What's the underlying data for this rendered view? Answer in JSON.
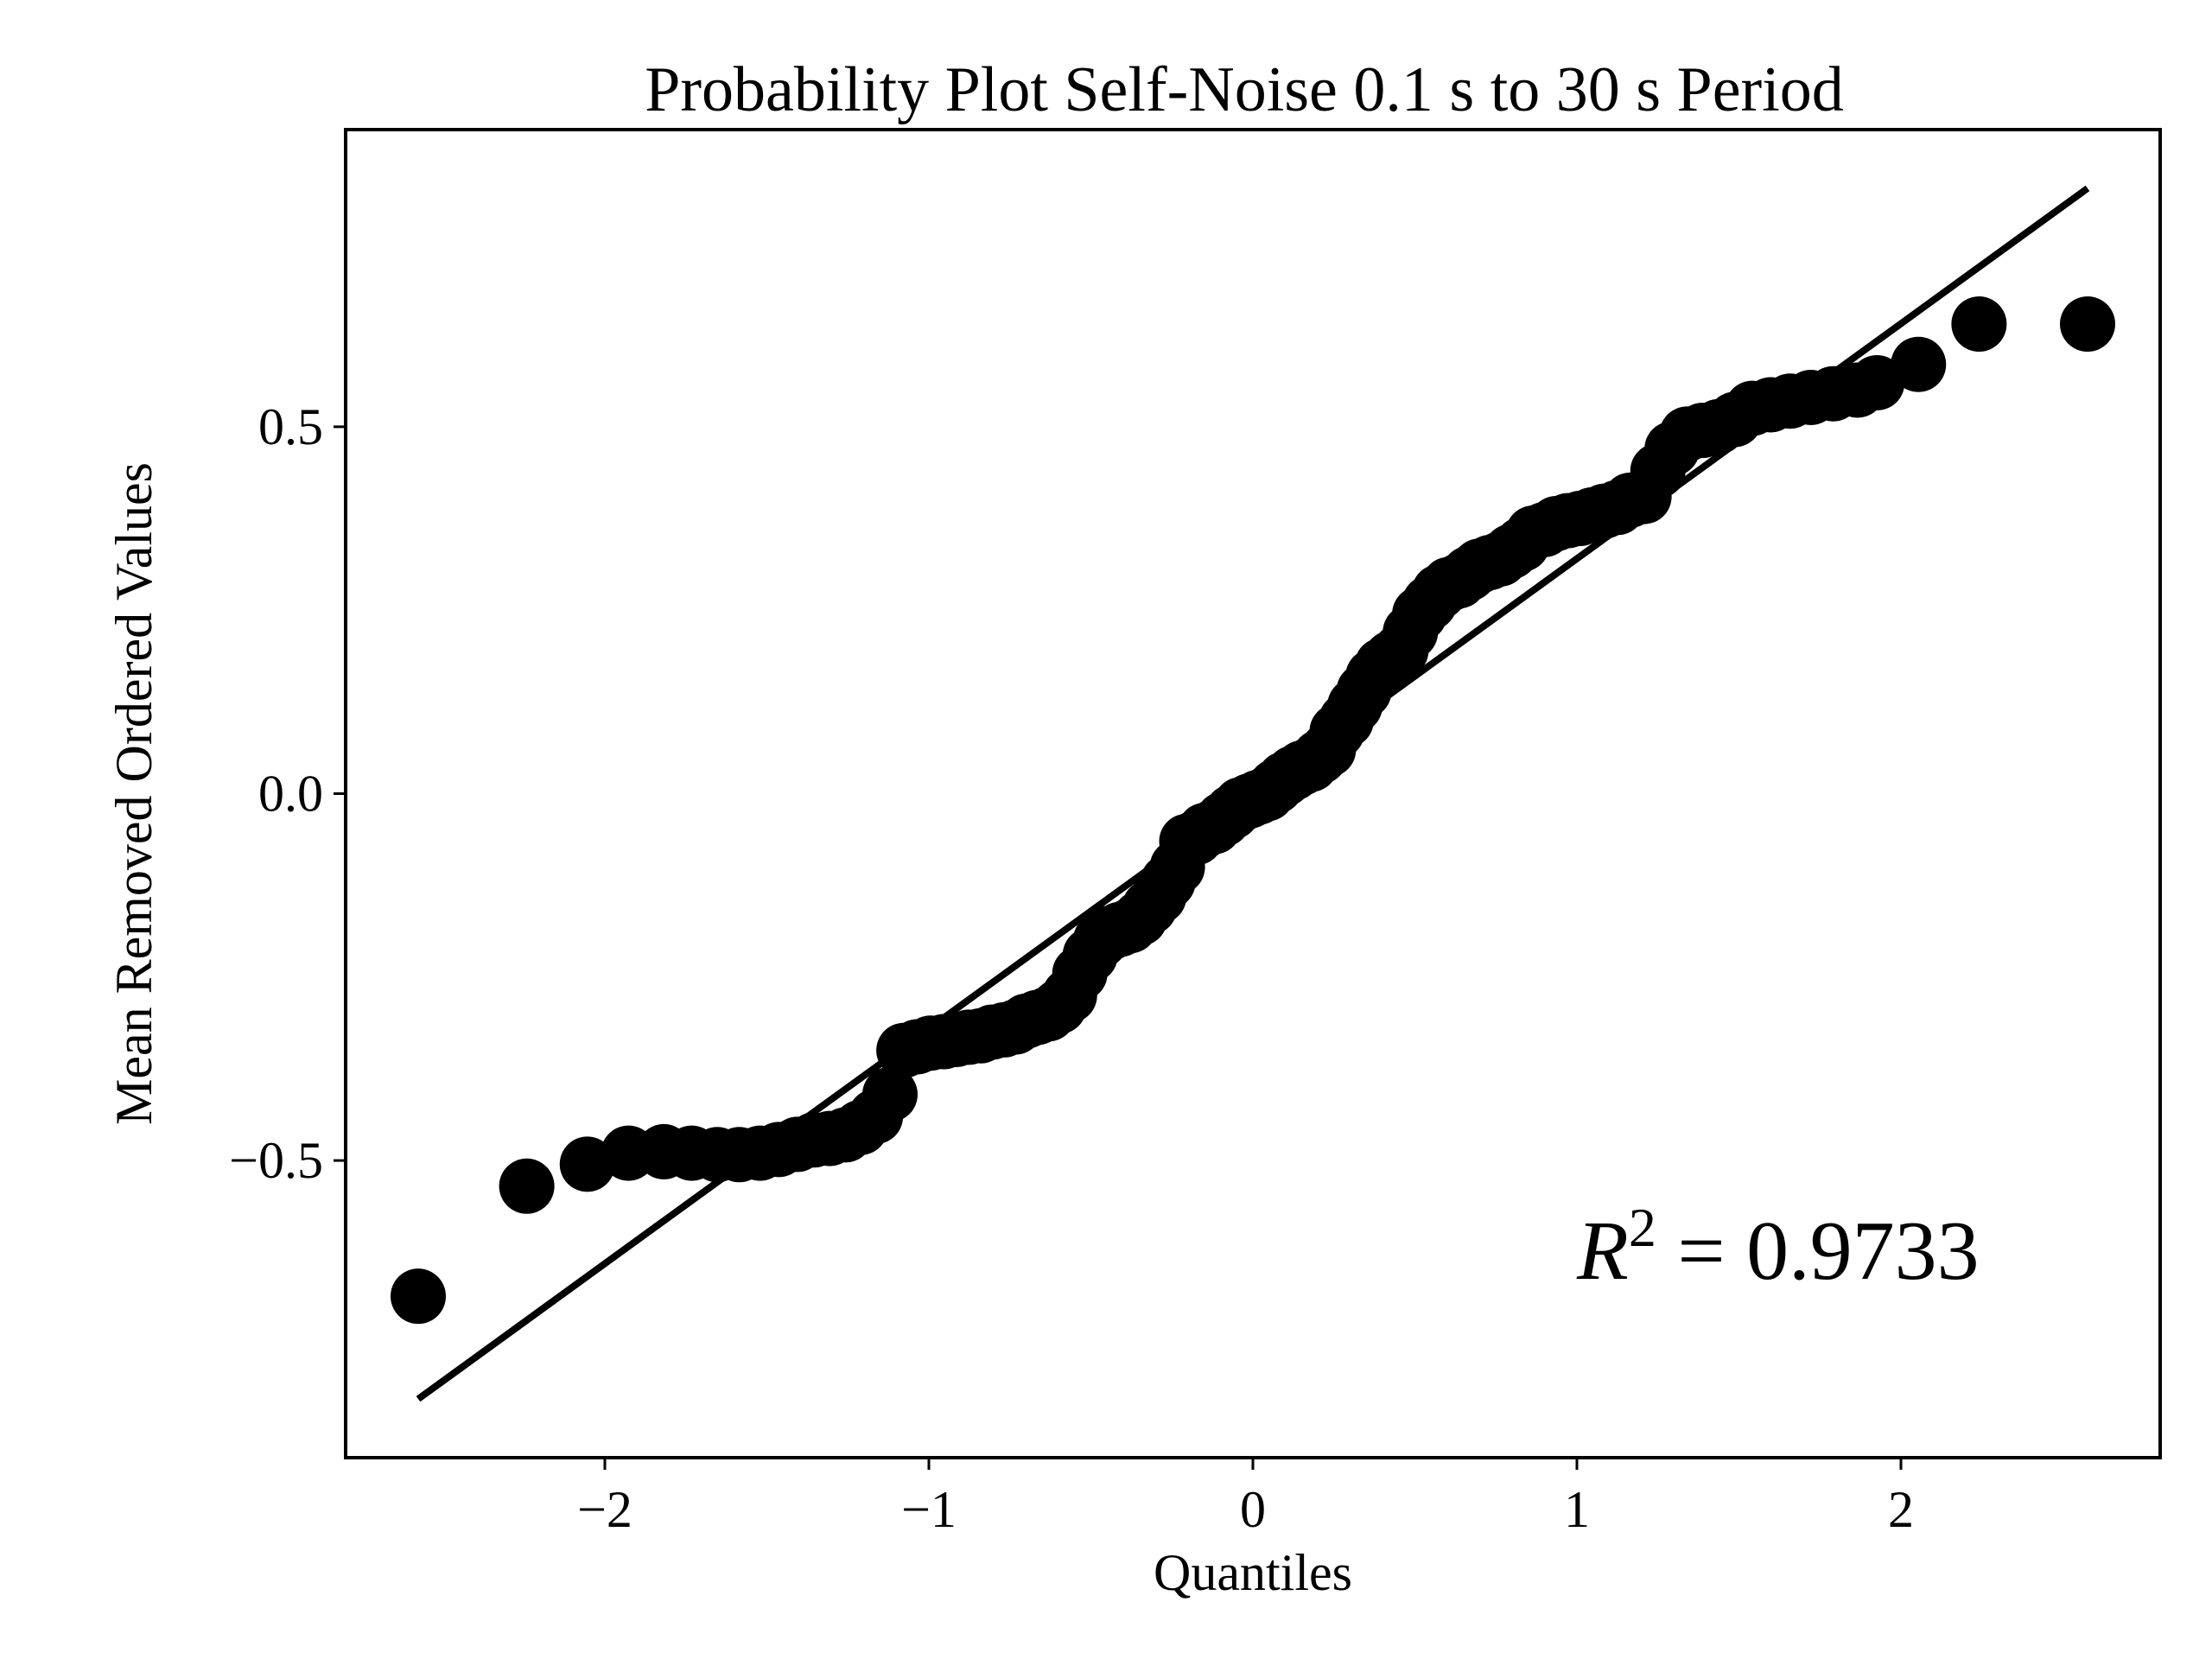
{
  "chart_data": {
    "type": "scatter",
    "title": "Probability Plot Self-Noise 0.1 s to 30 s Period",
    "xlabel": "Quantiles",
    "ylabel": "Mean Removed Ordered Values",
    "xlim": [
      -2.8,
      2.8
    ],
    "ylim": [
      -0.905,
      0.905
    ],
    "xticks": [
      -2,
      -1,
      0,
      1,
      2
    ],
    "xtick_labels": [
      "−2",
      "−1",
      "0",
      "1",
      "2"
    ],
    "yticks": [
      -0.5,
      0.0,
      0.5
    ],
    "ytick_labels": [
      "−0.5",
      "0.0",
      "0.5"
    ],
    "grid": false,
    "annotation": {
      "prefix": "R",
      "superscript": "2",
      "text": " = 0.9733"
    },
    "fit_line": {
      "x": [
        -2.576,
        2.576
      ],
      "y": [
        -0.825,
        0.825
      ]
    },
    "series": [
      {
        "marker": "circle",
        "color": "#000000",
        "x": [
          -2.576,
          -2.241,
          -2.054,
          -1.927,
          -1.818,
          -1.732,
          -1.653,
          -1.585,
          -1.521,
          -1.463,
          -1.406,
          -1.355,
          -1.306,
          -1.257,
          -1.211,
          -1.165,
          -1.12,
          -1.077,
          -1.036,
          -0.995,
          -0.954,
          -0.915,
          -0.877,
          -0.84,
          -0.804,
          -0.768,
          -0.733,
          -0.699,
          -0.665,
          -0.631,
          -0.598,
          -0.566,
          -0.534,
          -0.502,
          -0.47,
          -0.44,
          -0.41,
          -0.379,
          -0.349,
          -0.319,
          -0.29,
          -0.262,
          -0.233,
          -0.204,
          -0.176,
          -0.148,
          -0.12,
          -0.092,
          -0.064,
          -0.037,
          -0.01,
          0.017,
          0.044,
          0.071,
          0.098,
          0.125,
          0.152,
          0.179,
          0.206,
          0.233,
          0.26,
          0.288,
          0.315,
          0.343,
          0.371,
          0.399,
          0.428,
          0.457,
          0.486,
          0.515,
          0.545,
          0.575,
          0.605,
          0.636,
          0.667,
          0.699,
          0.731,
          0.764,
          0.797,
          0.831,
          0.865,
          0.9,
          0.936,
          0.972,
          1.009,
          1.047,
          1.085,
          1.125,
          1.165,
          1.207,
          1.25,
          1.294,
          1.34,
          1.387,
          1.436,
          1.487,
          1.541,
          1.598,
          1.658,
          1.722,
          1.791,
          1.866,
          1.926,
          2.054,
          2.241,
          2.576
        ],
        "y": [
          -0.685,
          -0.535,
          -0.505,
          -0.49,
          -0.488,
          -0.49,
          -0.492,
          -0.492,
          -0.49,
          -0.485,
          -0.478,
          -0.472,
          -0.47,
          -0.465,
          -0.455,
          -0.44,
          -0.41,
          -0.35,
          -0.345,
          -0.34,
          -0.338,
          -0.335,
          -0.332,
          -0.33,
          -0.325,
          -0.322,
          -0.318,
          -0.31,
          -0.305,
          -0.3,
          -0.29,
          -0.275,
          -0.245,
          -0.22,
          -0.2,
          -0.19,
          -0.185,
          -0.18,
          -0.17,
          -0.155,
          -0.14,
          -0.12,
          -0.1,
          -0.065,
          -0.06,
          -0.05,
          -0.045,
          -0.035,
          -0.025,
          -0.015,
          -0.01,
          -0.005,
          0.0,
          0.01,
          0.02,
          0.028,
          0.035,
          0.04,
          0.05,
          0.06,
          0.085,
          0.1,
          0.12,
          0.14,
          0.16,
          0.175,
          0.185,
          0.195,
          0.22,
          0.245,
          0.26,
          0.275,
          0.285,
          0.29,
          0.3,
          0.31,
          0.315,
          0.32,
          0.33,
          0.34,
          0.355,
          0.36,
          0.368,
          0.372,
          0.375,
          0.38,
          0.385,
          0.39,
          0.4,
          0.405,
          0.44,
          0.47,
          0.49,
          0.495,
          0.5,
          0.51,
          0.525,
          0.53,
          0.535,
          0.54,
          0.545,
          0.55,
          0.56,
          0.585,
          0.64,
          0.64
        ]
      }
    ]
  }
}
